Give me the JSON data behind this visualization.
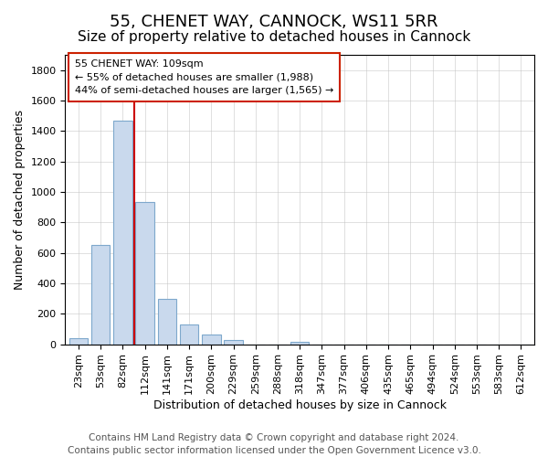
{
  "title": "55, CHENET WAY, CANNOCK, WS11 5RR",
  "subtitle": "Size of property relative to detached houses in Cannock",
  "xlabel": "Distribution of detached houses by size in Cannock",
  "ylabel": "Number of detached properties",
  "bar_labels": [
    "23sqm",
    "53sqm",
    "82sqm",
    "112sqm",
    "141sqm",
    "171sqm",
    "200sqm",
    "229sqm",
    "259sqm",
    "288sqm",
    "318sqm",
    "347sqm",
    "377sqm",
    "406sqm",
    "435sqm",
    "465sqm",
    "494sqm",
    "524sqm",
    "553sqm",
    "583sqm",
    "612sqm"
  ],
  "bar_values": [
    40,
    650,
    1470,
    935,
    295,
    130,
    65,
    25,
    0,
    0,
    15,
    0,
    0,
    0,
    0,
    0,
    0,
    0,
    0,
    0,
    0
  ],
  "bar_color": "#c9d9ed",
  "bar_edge_color": "#7ea8cc",
  "vline_x": 2.5,
  "vline_color": "#cc0000",
  "annotation_box_text": "55 CHENET WAY: 109sqm\n← 55% of detached houses are smaller (1,988)\n44% of semi-detached houses are larger (1,565) →",
  "ylim": [
    0,
    1900
  ],
  "yticks": [
    0,
    200,
    400,
    600,
    800,
    1000,
    1200,
    1400,
    1600,
    1800
  ],
  "footer_line1": "Contains HM Land Registry data © Crown copyright and database right 2024.",
  "footer_line2": "Contains public sector information licensed under the Open Government Licence v3.0.",
  "title_fontsize": 13,
  "subtitle_fontsize": 11,
  "label_fontsize": 9,
  "tick_fontsize": 8,
  "footer_fontsize": 7.5
}
